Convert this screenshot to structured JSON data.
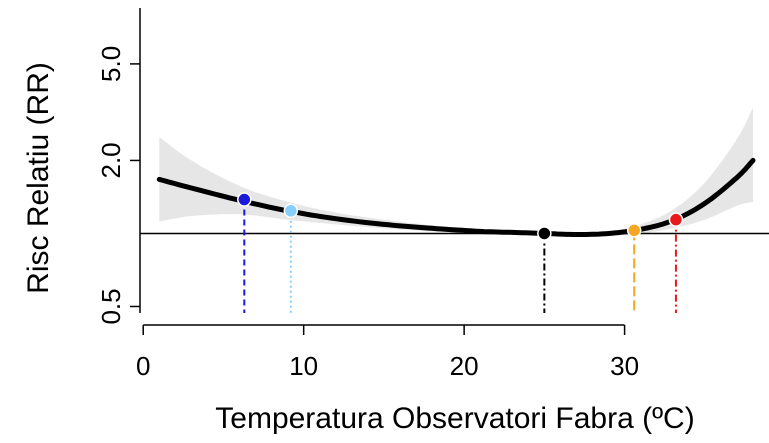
{
  "chart_data": {
    "type": "line",
    "title": "",
    "xlabel": "Temperatura Observatori Fabra (ºC)",
    "ylabel": "Risc Relatiu (RR)",
    "xlim": [
      -0.2,
      39
    ],
    "ylim": [
      0.47,
      8.5
    ],
    "ylog": true,
    "grid": false,
    "x_ticks": [
      0,
      10,
      20,
      30
    ],
    "x_tick_labels": [
      "0",
      "10",
      "20",
      "30"
    ],
    "y_ticks": [
      0.5,
      2.0,
      5.0
    ],
    "y_tick_labels": [
      "0.5",
      "2.0",
      "5.0"
    ],
    "reference_line": {
      "y": 1.0,
      "color": "#000000"
    },
    "curve": {
      "name": "RR",
      "color": "#000000",
      "points": [
        {
          "x": 1,
          "y": 1.67,
          "lo": 1.12,
          "hi": 2.5
        },
        {
          "x": 3,
          "y": 1.54,
          "lo": 1.18,
          "hi": 2.0
        },
        {
          "x": 6,
          "y": 1.37,
          "lo": 1.2,
          "hi": 1.57
        },
        {
          "x": 9,
          "y": 1.24,
          "lo": 1.14,
          "hi": 1.35
        },
        {
          "x": 12,
          "y": 1.15,
          "lo": 1.09,
          "hi": 1.22
        },
        {
          "x": 15,
          "y": 1.09,
          "lo": 1.05,
          "hi": 1.14
        },
        {
          "x": 18,
          "y": 1.05,
          "lo": 1.02,
          "hi": 1.08
        },
        {
          "x": 21,
          "y": 1.02,
          "lo": 1.01,
          "hi": 1.04
        },
        {
          "x": 23,
          "y": 1.01,
          "lo": 1.0,
          "hi": 1.02
        },
        {
          "x": 25,
          "y": 1.0,
          "lo": 1.0,
          "hi": 1.0
        },
        {
          "x": 27,
          "y": 0.99,
          "lo": 0.98,
          "hi": 1.0
        },
        {
          "x": 29,
          "y": 1.0,
          "lo": 0.98,
          "hi": 1.02
        },
        {
          "x": 31,
          "y": 1.04,
          "lo": 1.0,
          "hi": 1.09
        },
        {
          "x": 33,
          "y": 1.13,
          "lo": 1.05,
          "hi": 1.25
        },
        {
          "x": 35,
          "y": 1.33,
          "lo": 1.14,
          "hi": 1.62
        },
        {
          "x": 37,
          "y": 1.7,
          "lo": 1.3,
          "hi": 2.45
        },
        {
          "x": 38,
          "y": 2.0,
          "lo": 1.35,
          "hi": 3.3
        }
      ]
    },
    "markers": [
      {
        "x": 6.3,
        "y": 1.38,
        "color": "#1a1adb",
        "dash": "dashed"
      },
      {
        "x": 9.2,
        "y": 1.24,
        "color": "#87cefa",
        "dash": "dotted"
      },
      {
        "x": 25.0,
        "y": 1.0,
        "color": "#000000",
        "dash": "dashdot"
      },
      {
        "x": 30.6,
        "y": 1.03,
        "color": "#f5a623",
        "dash": "longdash"
      },
      {
        "x": 33.2,
        "y": 1.14,
        "color": "#e8191a",
        "dash": "dashdot"
      }
    ],
    "band_color": "#e6e6e6"
  }
}
